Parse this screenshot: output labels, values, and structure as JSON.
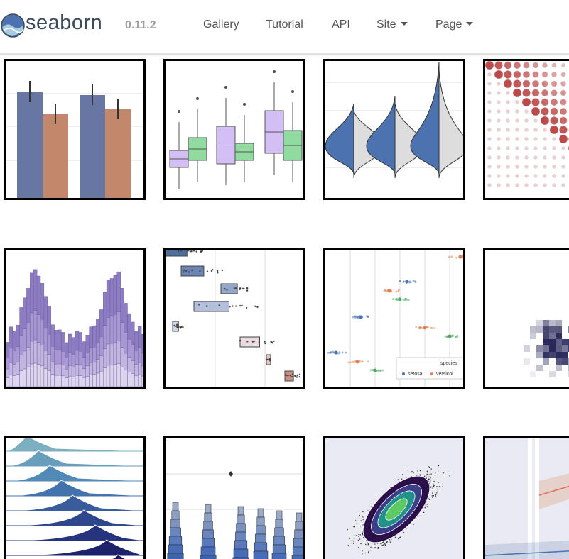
{
  "header": {
    "brand": "seaborn",
    "version": "0.11.2",
    "nav": [
      "Gallery",
      "Tutorial",
      "API",
      "Site",
      "Page"
    ]
  },
  "gallery": {
    "legend_title": "species",
    "legend_items": [
      "setosa",
      "versicol"
    ]
  }
}
